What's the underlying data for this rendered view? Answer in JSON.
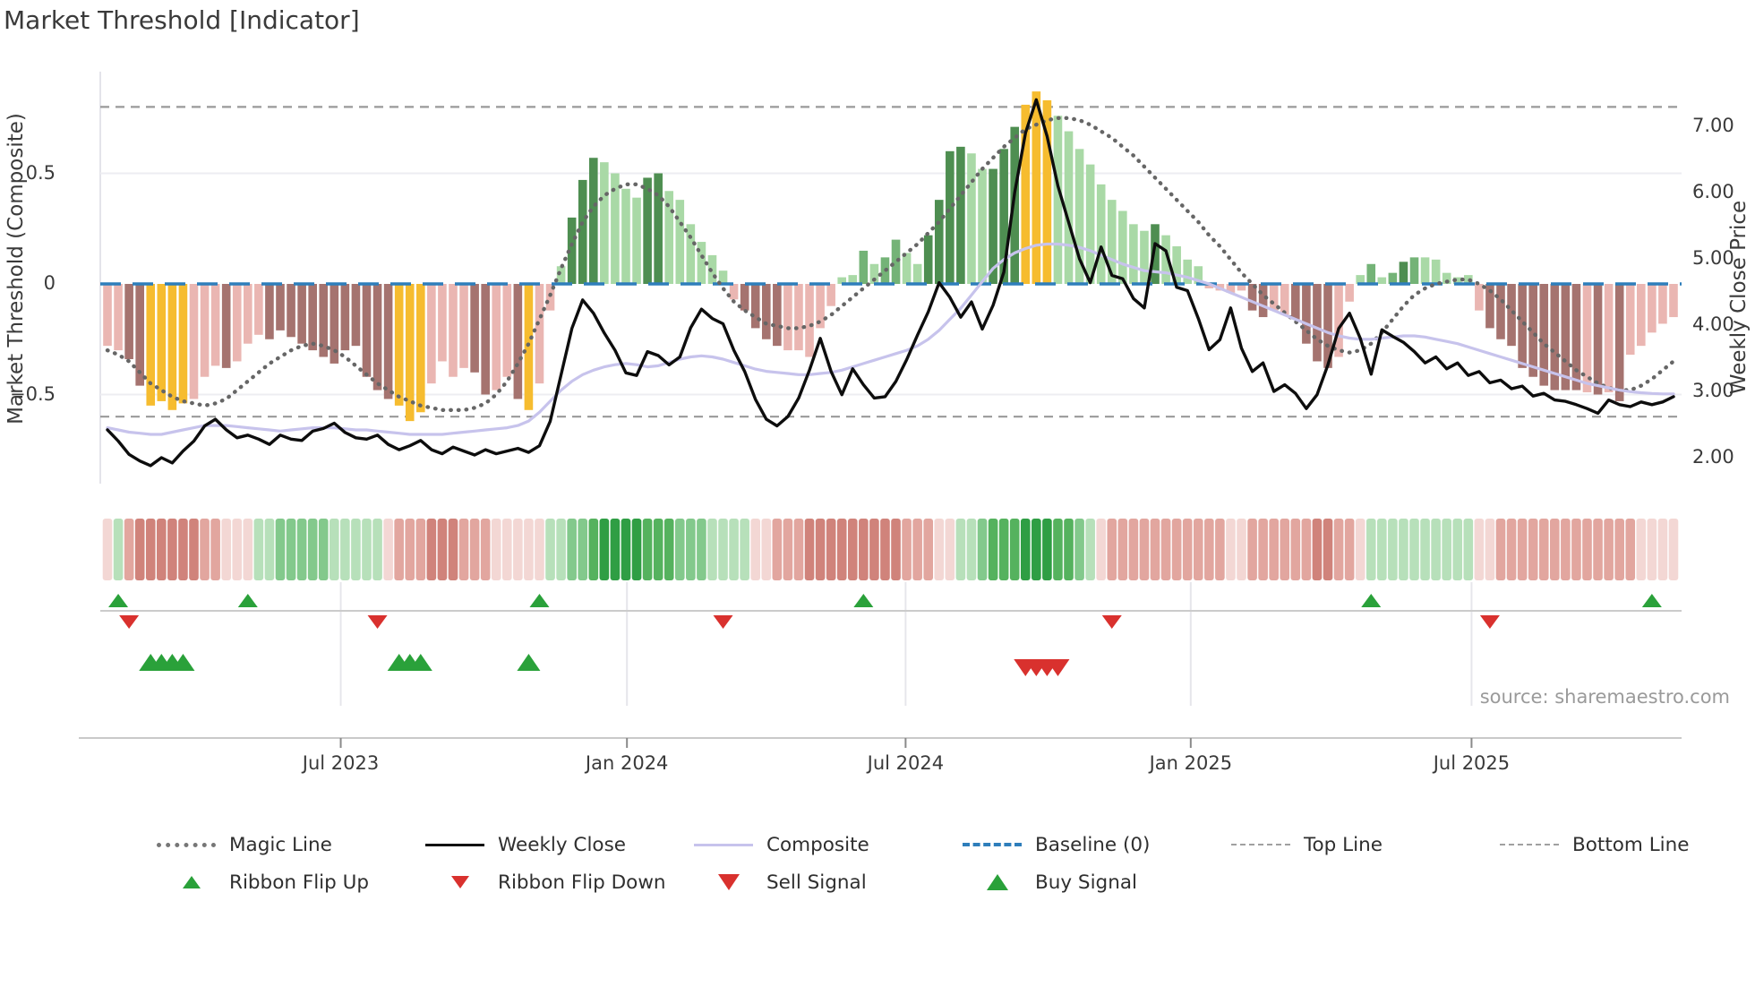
{
  "title": "Market Threshold [Indicator]",
  "source_note": "source: sharemaestro.com",
  "left_axis": {
    "label": "Market Threshold (Composite)",
    "ticks": [
      {
        "v": 0.5,
        "label": "0.5"
      },
      {
        "v": 0,
        "label": "0"
      },
      {
        "v": -0.5,
        "label": "−0.5"
      }
    ]
  },
  "right_axis": {
    "label": "Weekly Close Price",
    "ticks": [
      {
        "v": 7,
        "label": "7.00"
      },
      {
        "v": 6,
        "label": "6.00"
      },
      {
        "v": 5,
        "label": "5.00"
      },
      {
        "v": 4,
        "label": "4.00"
      },
      {
        "v": 3,
        "label": "3.00"
      },
      {
        "v": 2,
        "label": "2.00"
      }
    ]
  },
  "x_axis": {
    "ticks": [
      {
        "week": 21.6,
        "label": "Jul 2023"
      },
      {
        "week": 48.1,
        "label": "Jan 2024"
      },
      {
        "week": 73.9,
        "label": "Jul 2024"
      },
      {
        "week": 100.3,
        "label": "Jan 2025"
      },
      {
        "week": 126.3,
        "label": "Jul 2025"
      }
    ]
  },
  "colors": {
    "baseline": "#2e7ebb",
    "magic_line": "#666666",
    "weekly_close": "#0d0d0d",
    "composite_line": "#c7c3ec",
    "top_bottom_line": "#999999",
    "gridline": "#ededf2",
    "signal_gridline": "#e6e6eb",
    "spine": "#c9c9c9",
    "buy_green": "#2aa13a",
    "sell_red": "#d9312e",
    "bar_palette": {
      "p": "#eab6b2",
      "m": "#a5736f",
      "y": "#f6bc2f",
      "g1": "#a9d9a6",
      "g2": "#74b377",
      "g3": "#4e8e51"
    },
    "ribbon_palette": {
      "-4": "#c26b62",
      "-3": "#d0837b",
      "-2": "#e2a69f",
      "-1": "#f3d7d4",
      "1": "#b7e0ba",
      "2": "#83c98c",
      "3": "#55b25e",
      "4": "#2f9e44"
    }
  },
  "chart_data": {
    "type": "bar",
    "panels": [
      "indicator_histogram_with_lines",
      "trend_ribbon",
      "ribbon_flip_markers",
      "trade_signal_markers"
    ],
    "weeks": 146,
    "title": "Market Threshold [Indicator]",
    "left_axis_range": [
      -0.85,
      0.95
    ],
    "right_axis_range": [
      1.6,
      7.6
    ],
    "reference_lines": {
      "top_line": 0.8,
      "baseline": 0,
      "bottom_line": -0.6
    },
    "grid": "horizontal at 0.5 and -0.5; vertical date gridlines in signal rows",
    "legend_position": "bottom",
    "bars": {
      "name": "Market Threshold (Composite) histogram",
      "values": [
        -0.28,
        -0.3,
        -0.34,
        -0.46,
        -0.55,
        -0.53,
        -0.57,
        -0.54,
        -0.52,
        -0.42,
        -0.37,
        -0.38,
        -0.35,
        -0.27,
        -0.23,
        -0.25,
        -0.21,
        -0.24,
        -0.27,
        -0.3,
        -0.33,
        -0.36,
        -0.3,
        -0.28,
        -0.42,
        -0.48,
        -0.52,
        -0.55,
        -0.62,
        -0.58,
        -0.45,
        -0.35,
        -0.42,
        -0.38,
        -0.4,
        -0.5,
        -0.48,
        -0.42,
        -0.52,
        -0.57,
        -0.45,
        -0.12,
        0.08,
        0.3,
        0.47,
        0.57,
        0.55,
        0.5,
        0.43,
        0.39,
        0.48,
        0.5,
        0.42,
        0.38,
        0.27,
        0.19,
        0.13,
        0.06,
        -0.07,
        -0.12,
        -0.2,
        -0.25,
        -0.28,
        -0.3,
        -0.3,
        -0.33,
        -0.2,
        -0.1,
        0.03,
        0.04,
        0.15,
        0.09,
        0.12,
        0.2,
        0.14,
        0.09,
        0.22,
        0.38,
        0.6,
        0.62,
        0.59,
        0.52,
        0.52,
        0.61,
        0.71,
        0.81,
        0.87,
        0.83,
        0.76,
        0.69,
        0.61,
        0.54,
        0.45,
        0.38,
        0.33,
        0.27,
        0.24,
        0.27,
        0.22,
        0.17,
        0.11,
        0.08,
        -0.02,
        -0.03,
        -0.04,
        -0.03,
        -0.12,
        -0.15,
        -0.12,
        -0.14,
        -0.16,
        -0.27,
        -0.35,
        -0.38,
        -0.33,
        -0.08,
        0.04,
        0.09,
        0.03,
        0.05,
        0.1,
        0.12,
        0.12,
        0.11,
        0.05,
        0.03,
        0.04,
        -0.12,
        -0.2,
        -0.25,
        -0.28,
        -0.38,
        -0.42,
        -0.46,
        -0.48,
        -0.48,
        -0.48,
        -0.49,
        -0.5,
        -0.49,
        -0.53,
        -0.32,
        -0.28,
        -0.22,
        -0.18,
        -0.15
      ],
      "colors": [
        "p",
        "p",
        "m",
        "m",
        "y",
        "y",
        "y",
        "y",
        "p",
        "p",
        "p",
        "m",
        "p",
        "p",
        "p",
        "m",
        "m",
        "m",
        "m",
        "m",
        "m",
        "m",
        "m",
        "m",
        "m",
        "m",
        "m",
        "y",
        "y",
        "y",
        "p",
        "p",
        "p",
        "p",
        "m",
        "m",
        "p",
        "p",
        "m",
        "y",
        "p",
        "p",
        "g1",
        "g3",
        "g3",
        "g3",
        "g1",
        "g1",
        "g1",
        "g1",
        "g3",
        "g3",
        "g1",
        "g1",
        "g1",
        "g1",
        "g1",
        "g1",
        "p",
        "m",
        "m",
        "m",
        "m",
        "p",
        "p",
        "p",
        "p",
        "p",
        "g1",
        "g1",
        "g2",
        "g1",
        "g2",
        "g2",
        "g1",
        "g1",
        "g3",
        "g3",
        "g3",
        "g3",
        "g1",
        "g1",
        "g3",
        "g3",
        "g3",
        "y",
        "y",
        "y",
        "g1",
        "g1",
        "g1",
        "g1",
        "g1",
        "g1",
        "g1",
        "g1",
        "g1",
        "g3",
        "g1",
        "g1",
        "g1",
        "g1",
        "p",
        "p",
        "p",
        "p",
        "m",
        "m",
        "p",
        "p",
        "m",
        "m",
        "m",
        "m",
        "p",
        "p",
        "g1",
        "g2",
        "g1",
        "g2",
        "g3",
        "g2",
        "g1",
        "g1",
        "g1",
        "g1",
        "g1",
        "p",
        "m",
        "m",
        "m",
        "m",
        "m",
        "m",
        "m",
        "m",
        "m",
        "p",
        "m",
        "p",
        "m",
        "p",
        "p",
        "p",
        "p",
        "p"
      ]
    },
    "series": [
      {
        "name": "Magic Line",
        "axis": "left",
        "style": "dotted",
        "values": [
          -0.3,
          -0.32,
          -0.35,
          -0.4,
          -0.45,
          -0.48,
          -0.51,
          -0.53,
          -0.54,
          -0.55,
          -0.54,
          -0.52,
          -0.48,
          -0.44,
          -0.4,
          -0.36,
          -0.33,
          -0.3,
          -0.28,
          -0.27,
          -0.28,
          -0.3,
          -0.33,
          -0.37,
          -0.41,
          -0.45,
          -0.48,
          -0.51,
          -0.53,
          -0.55,
          -0.56,
          -0.57,
          -0.57,
          -0.57,
          -0.56,
          -0.54,
          -0.5,
          -0.44,
          -0.36,
          -0.27,
          -0.16,
          -0.05,
          0.07,
          0.18,
          0.28,
          0.35,
          0.4,
          0.43,
          0.45,
          0.45,
          0.43,
          0.4,
          0.35,
          0.28,
          0.21,
          0.13,
          0.05,
          -0.02,
          -0.08,
          -0.12,
          -0.15,
          -0.18,
          -0.19,
          -0.2,
          -0.2,
          -0.19,
          -0.17,
          -0.14,
          -0.1,
          -0.06,
          -0.02,
          0.02,
          0.06,
          0.1,
          0.14,
          0.18,
          0.23,
          0.28,
          0.34,
          0.4,
          0.46,
          0.52,
          0.57,
          0.62,
          0.66,
          0.7,
          0.72,
          0.74,
          0.75,
          0.75,
          0.74,
          0.72,
          0.69,
          0.66,
          0.62,
          0.58,
          0.53,
          0.48,
          0.43,
          0.38,
          0.33,
          0.28,
          0.22,
          0.17,
          0.11,
          0.05,
          0.0,
          -0.05,
          -0.09,
          -0.13,
          -0.17,
          -0.21,
          -0.25,
          -0.28,
          -0.3,
          -0.31,
          -0.3,
          -0.27,
          -0.22,
          -0.16,
          -0.1,
          -0.05,
          -0.02,
          0.0,
          0.01,
          0.02,
          0.02,
          0.0,
          -0.03,
          -0.07,
          -0.12,
          -0.17,
          -0.22,
          -0.27,
          -0.31,
          -0.35,
          -0.39,
          -0.42,
          -0.45,
          -0.47,
          -0.48,
          -0.48,
          -0.46,
          -0.43,
          -0.39,
          -0.35
        ]
      },
      {
        "name": "Weekly Close",
        "axis": "right",
        "style": "solid",
        "values": [
          2.42,
          2.25,
          2.05,
          1.95,
          1.88,
          2.0,
          1.92,
          2.1,
          2.25,
          2.48,
          2.58,
          2.42,
          2.3,
          2.34,
          2.28,
          2.2,
          2.34,
          2.28,
          2.26,
          2.4,
          2.44,
          2.52,
          2.38,
          2.3,
          2.28,
          2.34,
          2.2,
          2.12,
          2.18,
          2.26,
          2.12,
          2.06,
          2.16,
          2.1,
          2.04,
          2.12,
          2.06,
          2.1,
          2.14,
          2.08,
          2.18,
          2.55,
          3.25,
          3.95,
          4.38,
          4.18,
          3.88,
          3.62,
          3.28,
          3.24,
          3.6,
          3.54,
          3.4,
          3.52,
          3.96,
          4.24,
          4.1,
          4.02,
          3.62,
          3.3,
          2.88,
          2.58,
          2.48,
          2.62,
          2.9,
          3.32,
          3.8,
          3.3,
          2.95,
          3.34,
          3.1,
          2.9,
          2.92,
          3.15,
          3.48,
          3.85,
          4.2,
          4.64,
          4.42,
          4.12,
          4.35,
          3.94,
          4.3,
          4.8,
          6.0,
          6.9,
          7.4,
          6.85,
          6.1,
          5.55,
          5.0,
          4.64,
          5.18,
          4.75,
          4.7,
          4.4,
          4.26,
          5.23,
          5.12,
          4.57,
          4.52,
          4.1,
          3.63,
          3.78,
          4.26,
          3.65,
          3.3,
          3.43,
          3.0,
          3.1,
          2.97,
          2.74,
          2.95,
          3.4,
          3.95,
          4.18,
          3.8,
          3.26,
          3.93,
          3.83,
          3.74,
          3.6,
          3.43,
          3.52,
          3.34,
          3.43,
          3.24,
          3.3,
          3.13,
          3.17,
          3.04,
          3.08,
          2.93,
          2.97,
          2.87,
          2.85,
          2.8,
          2.74,
          2.67,
          2.87,
          2.8,
          2.77,
          2.84,
          2.8,
          2.84,
          2.92
        ]
      },
      {
        "name": "Composite",
        "axis": "left",
        "style": "solid",
        "values": [
          -0.65,
          -0.66,
          -0.67,
          -0.675,
          -0.68,
          -0.68,
          -0.67,
          -0.66,
          -0.65,
          -0.64,
          -0.64,
          -0.64,
          -0.645,
          -0.65,
          -0.655,
          -0.66,
          -0.665,
          -0.66,
          -0.655,
          -0.65,
          -0.65,
          -0.65,
          -0.655,
          -0.66,
          -0.66,
          -0.665,
          -0.67,
          -0.675,
          -0.68,
          -0.68,
          -0.68,
          -0.68,
          -0.675,
          -0.67,
          -0.665,
          -0.66,
          -0.655,
          -0.65,
          -0.64,
          -0.62,
          -0.58,
          -0.53,
          -0.48,
          -0.44,
          -0.41,
          -0.39,
          -0.375,
          -0.365,
          -0.36,
          -0.365,
          -0.375,
          -0.37,
          -0.355,
          -0.34,
          -0.33,
          -0.325,
          -0.33,
          -0.34,
          -0.355,
          -0.37,
          -0.385,
          -0.395,
          -0.4,
          -0.405,
          -0.41,
          -0.41,
          -0.405,
          -0.4,
          -0.39,
          -0.375,
          -0.36,
          -0.345,
          -0.33,
          -0.315,
          -0.3,
          -0.28,
          -0.25,
          -0.21,
          -0.16,
          -0.11,
          -0.05,
          0.01,
          0.07,
          0.11,
          0.14,
          0.16,
          0.175,
          0.18,
          0.18,
          0.175,
          0.165,
          0.15,
          0.13,
          0.11,
          0.09,
          0.075,
          0.06,
          0.055,
          0.05,
          0.04,
          0.03,
          0.015,
          0.0,
          -0.02,
          -0.04,
          -0.06,
          -0.08,
          -0.1,
          -0.12,
          -0.14,
          -0.16,
          -0.18,
          -0.2,
          -0.22,
          -0.235,
          -0.245,
          -0.25,
          -0.25,
          -0.245,
          -0.24,
          -0.235,
          -0.235,
          -0.24,
          -0.25,
          -0.26,
          -0.27,
          -0.285,
          -0.3,
          -0.315,
          -0.33,
          -0.345,
          -0.36,
          -0.375,
          -0.39,
          -0.405,
          -0.42,
          -0.435,
          -0.45,
          -0.46,
          -0.47,
          -0.48,
          -0.487,
          -0.492,
          -0.495,
          -0.497,
          -0.497
        ]
      }
    ],
    "ribbon": {
      "name": "trend ribbon",
      "values": [
        -1,
        1,
        -2,
        -3,
        -3,
        -3,
        -3,
        -3,
        -3,
        -2,
        -2,
        -1,
        -1,
        -1,
        1,
        1,
        2,
        2,
        2,
        2,
        2,
        1,
        1,
        1,
        1,
        1,
        -1,
        -2,
        -2,
        -2,
        -3,
        -3,
        -3,
        -2,
        -2,
        -2,
        -1,
        -1,
        -1,
        -1,
        -1,
        1,
        1,
        2,
        2,
        3,
        4,
        4,
        4,
        4,
        3,
        3,
        3,
        2,
        2,
        2,
        1,
        1,
        1,
        1,
        -1,
        -1,
        -2,
        -2,
        -2,
        -3,
        -3,
        -3,
        -3,
        -3,
        -3,
        -3,
        -3,
        -3,
        -2,
        -2,
        -2,
        -1,
        -1,
        1,
        1,
        2,
        3,
        3,
        3,
        4,
        4,
        4,
        3,
        3,
        2,
        1,
        -1,
        -2,
        -2,
        -2,
        -2,
        -2,
        -2,
        -2,
        -2,
        -2,
        -2,
        -2,
        -1,
        -1,
        -2,
        -2,
        -2,
        -2,
        -2,
        -2,
        -3,
        -3,
        -2,
        -2,
        -1,
        1,
        1,
        1,
        1,
        1,
        1,
        1,
        1,
        1,
        1,
        -1,
        -1,
        -2,
        -2,
        -2,
        -2,
        -2,
        -2,
        -2,
        -2,
        -2,
        -2,
        -2,
        -2,
        -2,
        -1,
        -1,
        -1,
        -1
      ]
    },
    "signals": {
      "ribbon_flip_up_weeks": [
        1,
        13,
        40,
        70,
        117,
        143
      ],
      "ribbon_flip_down_weeks": [
        2,
        25,
        57,
        93,
        128
      ],
      "buy_signal_weeks": [
        4,
        5,
        6,
        7,
        27,
        28,
        29,
        39
      ],
      "sell_signal_weeks": [
        85,
        86,
        87,
        88
      ]
    }
  },
  "legend": {
    "rows": [
      [
        {
          "label": "Magic Line",
          "swatch": "dotted-gray"
        },
        {
          "label": "Weekly Close",
          "swatch": "solid-black"
        },
        {
          "label": "Composite",
          "swatch": "solid-purple"
        },
        {
          "label": "Baseline (0)",
          "swatch": "dashed-blue"
        },
        {
          "label": "Top Line",
          "swatch": "dashed-gray"
        },
        {
          "label": "Bottom Line",
          "swatch": "dashed-gray"
        }
      ],
      [
        {
          "label": "Ribbon Flip Up",
          "swatch": "tri-up-small"
        },
        {
          "label": "Ribbon Flip Down",
          "swatch": "tri-down-small"
        },
        {
          "label": "Sell Signal",
          "swatch": "tri-down-large"
        },
        {
          "label": "Buy Signal",
          "swatch": "tri-up-large"
        }
      ]
    ]
  }
}
